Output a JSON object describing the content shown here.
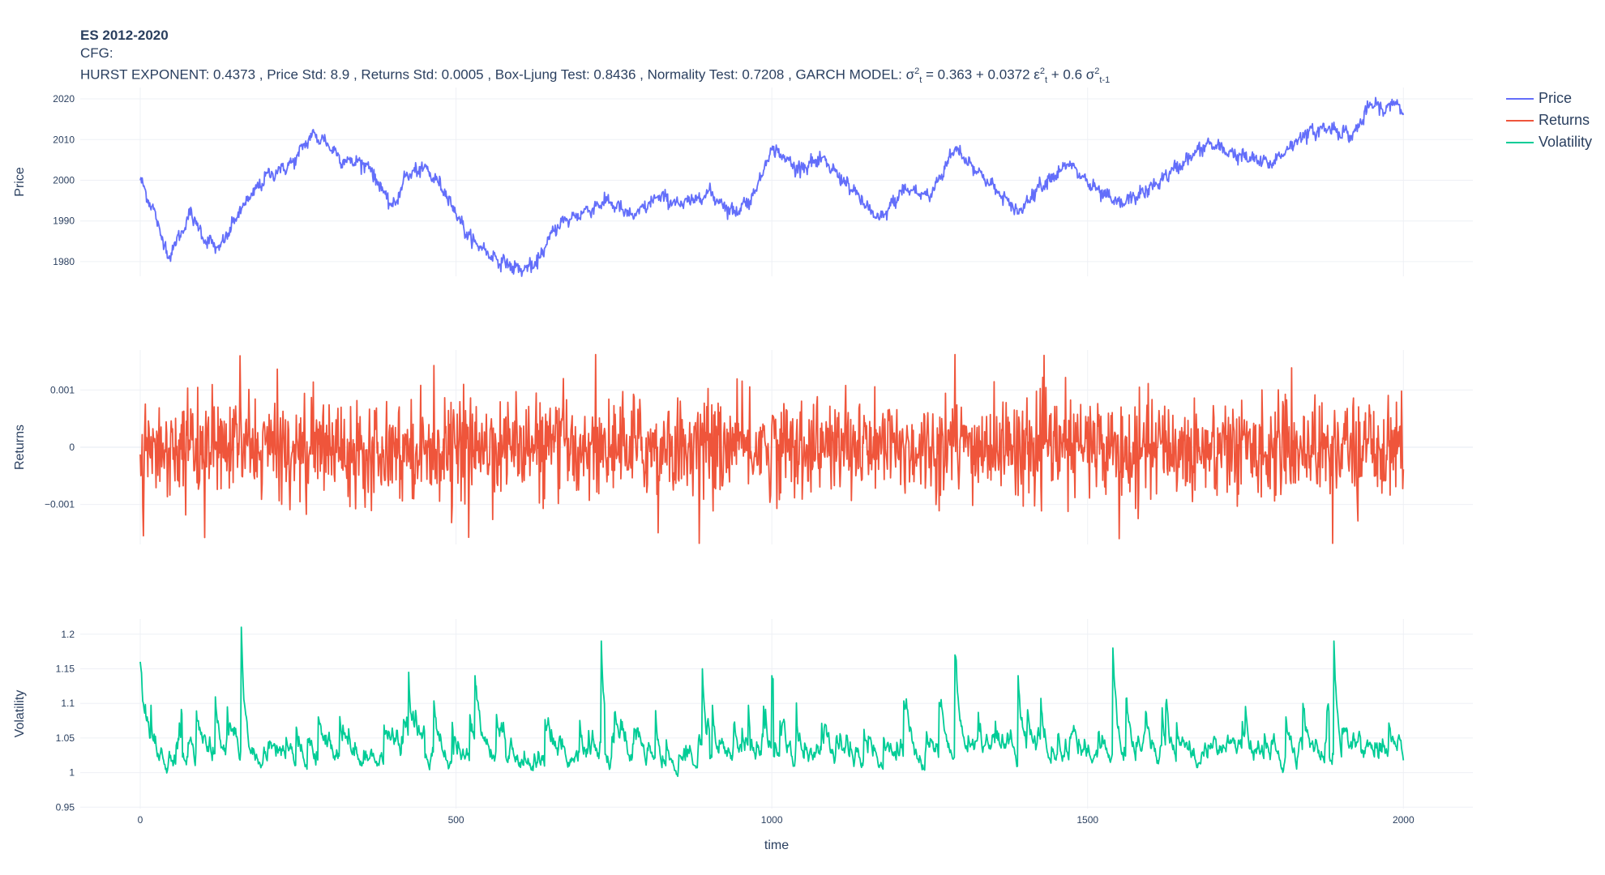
{
  "title": {
    "main": "ES 2012-2020",
    "cfg": "CFG:",
    "stats_prefix": "HURST EXPONENT: 0.4373 , Price Std: 8.9 , Returns Std: 0.0005 , Box-Ljung Test: 0.8436 , Normality Test: 0.7208 , GARCH MODEL: ",
    "garch_sigma": "σ",
    "garch_sup1": "2",
    "garch_sub1": "t",
    "garch_mid1": " = 0.363 + 0.0372 ε",
    "garch_sup2": "2",
    "garch_sub2": "t",
    "garch_mid2": " + 0.6 σ",
    "garch_sup3": "2",
    "garch_sub3": "t-1"
  },
  "legend": [
    {
      "label": "Price",
      "color": "#636efa"
    },
    {
      "label": "Returns",
      "color": "#ef553b"
    },
    {
      "label": "Volatility",
      "color": "#00cc96"
    }
  ],
  "chart_data": {
    "type": "line",
    "xlabel": "time",
    "xlim": [
      -95,
      2110
    ],
    "xticks": [
      0,
      500,
      1000,
      1500,
      2000
    ],
    "grid": true,
    "legend_position": "top-right",
    "panels": [
      {
        "series_name": "Price",
        "ylabel": "Price",
        "color": "#636efa",
        "ylim": [
          1976.4,
          2022.8
        ],
        "yticks": [
          1980,
          1990,
          2000,
          2010,
          2020
        ],
        "ytick_labels": [
          "1980",
          "1990",
          "2000",
          "2010",
          "2020"
        ],
        "x": [
          0,
          20,
          45,
          80,
          100,
          125,
          160,
          200,
          240,
          270,
          290,
          320,
          360,
          400,
          420,
          450,
          480,
          520,
          560,
          600,
          625,
          660,
          700,
          740,
          780,
          820,
          860,
          900,
          940,
          970,
          1000,
          1040,
          1080,
          1120,
          1170,
          1210,
          1250,
          1290,
          1340,
          1390,
          1420,
          1470,
          1510,
          1550,
          1600,
          1640,
          1690,
          1740,
          1790,
          1840,
          1880,
          1920,
          1950,
          1970,
          1990,
          2000
        ],
        "y": [
          2000,
          1993,
          1981,
          1992,
          1986,
          1983,
          1993,
          2001,
          2004,
          2011,
          2010,
          2005,
          2004,
          1993,
          2001,
          2003,
          1998,
          1986,
          1981,
          1978,
          1979,
          1989,
          1992,
          1995,
          1991,
          1996,
          1994,
          1997,
          1992,
          1996,
          2008,
          2003,
          2005,
          1999,
          1990,
          1998,
          1996,
          2008,
          2000,
          1992,
          1998,
          2004,
          1998,
          1994,
          1998,
          2003,
          2009,
          2006,
          2004,
          2011,
          2013,
          2011,
          2019,
          2017,
          2020,
          2015
        ]
      },
      {
        "series_name": "Returns",
        "ylabel": "Returns",
        "color": "#ef553b",
        "ylim": [
          -0.0017,
          0.0017
        ],
        "yticks": [
          -0.001,
          0,
          0.001
        ],
        "ytick_labels": [
          "−0.001",
          "0",
          "0.001"
        ],
        "n_points": 2001,
        "mean": 0,
        "std": 0.0005,
        "min": -0.00168,
        "max": 0.00162
      },
      {
        "series_name": "Volatility",
        "ylabel": "Volatility",
        "color": "#00cc96",
        "ylim": [
          0.948,
          1.222
        ],
        "yticks": [
          0.95,
          1,
          1.05,
          1.1,
          1.15,
          1.2
        ],
        "ytick_labels": [
          "0.95",
          "1",
          "1.05",
          "1.1",
          "1.15",
          "1.2"
        ],
        "n_points": 2001,
        "min": 0.955,
        "max": 1.21,
        "spikes": [
          {
            "x": 0,
            "y": 1.16
          },
          {
            "x": 160,
            "y": 1.21
          },
          {
            "x": 425,
            "y": 1.145
          },
          {
            "x": 530,
            "y": 1.14
          },
          {
            "x": 730,
            "y": 1.19
          },
          {
            "x": 890,
            "y": 1.15
          },
          {
            "x": 1000,
            "y": 1.14
          },
          {
            "x": 1290,
            "y": 1.17
          },
          {
            "x": 1390,
            "y": 1.14
          },
          {
            "x": 1540,
            "y": 1.18
          },
          {
            "x": 1890,
            "y": 1.19
          }
        ]
      }
    ]
  }
}
